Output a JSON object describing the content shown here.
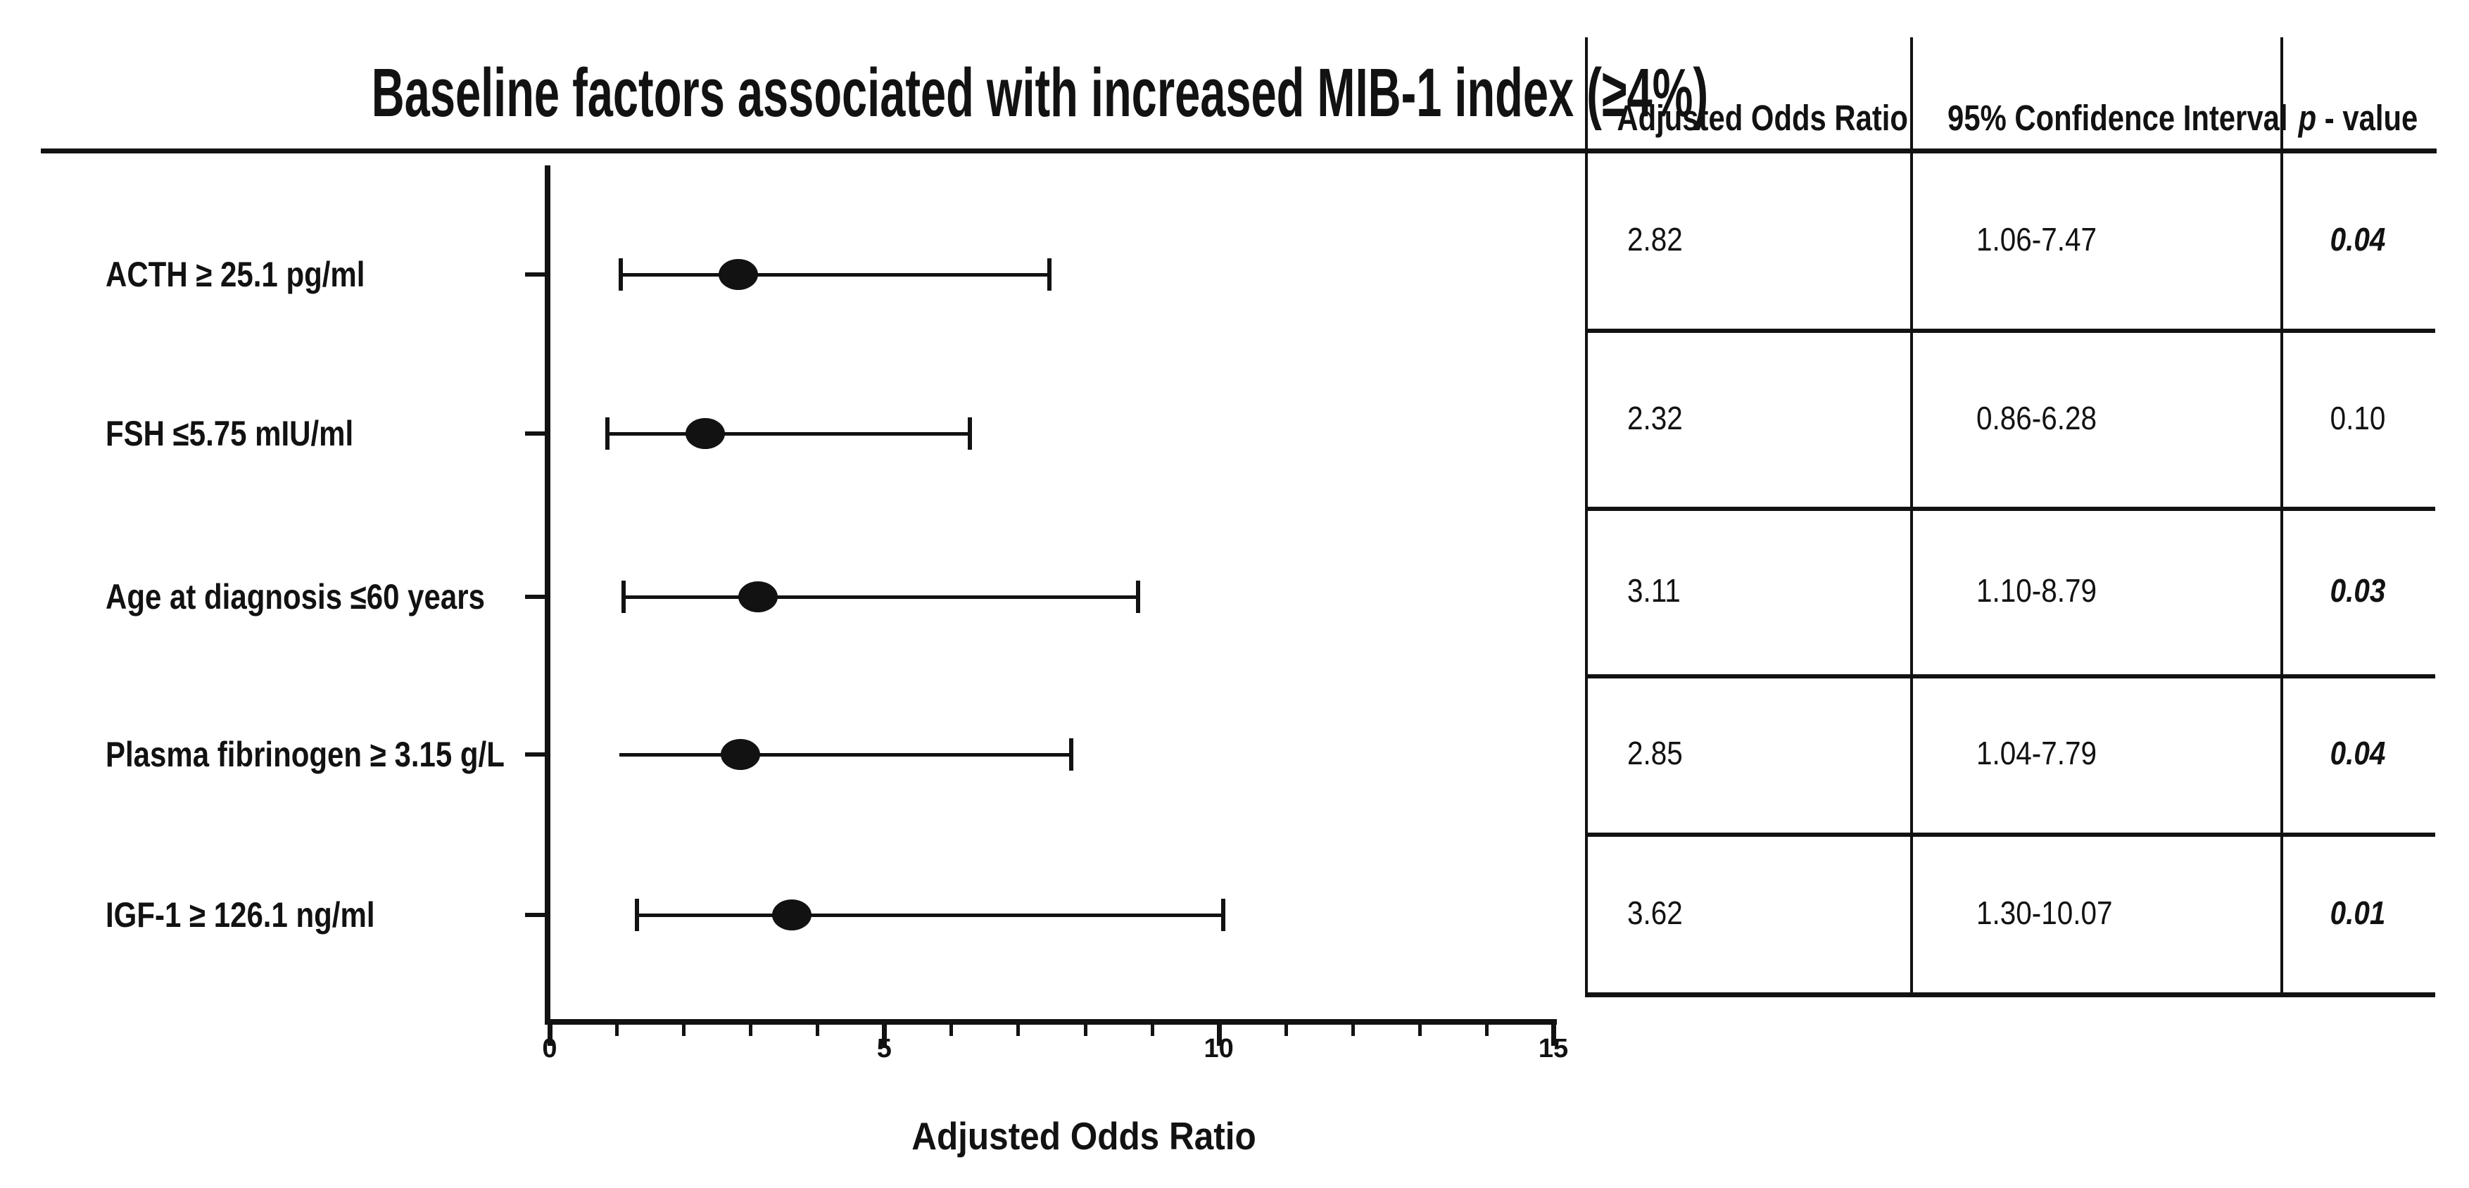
{
  "title": "Baseline factors associated with increased MIB-1 index (≥4%)",
  "chart_data": {
    "type": "forest_plot",
    "title": "Baseline factors associated with increased MIB-1 index (≥4%)",
    "xlabel": "Adjusted Odds Ratio",
    "xlim": [
      0,
      15
    ],
    "x_major_ticks": [
      0,
      5,
      10,
      15
    ],
    "x_minor_ticks": [
      1,
      2,
      3,
      4,
      6,
      7,
      8,
      9,
      11,
      12,
      13,
      14
    ],
    "grid": false,
    "legend": null,
    "marker": "filled-black-ellipse",
    "rows": [
      {
        "label": "ACTH ≥ 25.1 pg/ml",
        "odds_ratio": 2.82,
        "ci_low": 1.06,
        "ci_high": 7.47,
        "p_value": "0.04",
        "significant": true,
        "left_cap": true
      },
      {
        "label": "FSH ≤5.75 mIU/ml",
        "odds_ratio": 2.32,
        "ci_low": 0.86,
        "ci_high": 6.28,
        "p_value": "0.10",
        "significant": false,
        "left_cap": true
      },
      {
        "label": "Age at diagnosis ≤60 years",
        "odds_ratio": 3.11,
        "ci_low": 1.1,
        "ci_high": 8.79,
        "p_value": "0.03",
        "significant": true,
        "left_cap": true
      },
      {
        "label": "Plasma fibrinogen ≥ 3.15 g/L",
        "odds_ratio": 2.85,
        "ci_low": 1.04,
        "ci_high": 7.79,
        "p_value": "0.04",
        "significant": true,
        "left_cap": false
      },
      {
        "label": "IGF-1 ≥ 126.1 ng/ml",
        "odds_ratio": 3.62,
        "ci_low": 1.3,
        "ci_high": 10.07,
        "p_value": "0.01",
        "significant": true,
        "left_cap": true
      }
    ]
  },
  "table": {
    "headers": {
      "odds_ratio": "Adjusted Odds Ratio",
      "ci": "95% Confidence Interval",
      "p_italic": "p",
      "p_rest": " - value"
    },
    "rows": [
      {
        "odds_ratio": "2.82",
        "ci": "1.06-7.47",
        "p": "0.04",
        "significant": true
      },
      {
        "odds_ratio": "2.32",
        "ci": "0.86-6.28",
        "p": "0.10",
        "significant": false
      },
      {
        "odds_ratio": "3.11",
        "ci": "1.10-8.79",
        "p": "0.03",
        "significant": true
      },
      {
        "odds_ratio": "2.85",
        "ci": "1.04-7.79",
        "p": "0.04",
        "significant": true
      },
      {
        "odds_ratio": "3.62",
        "ci": "1.30-10.07",
        "p": "0.01",
        "significant": true
      }
    ]
  },
  "colors": {
    "ink": "#121212",
    "background": "#ffffff"
  }
}
